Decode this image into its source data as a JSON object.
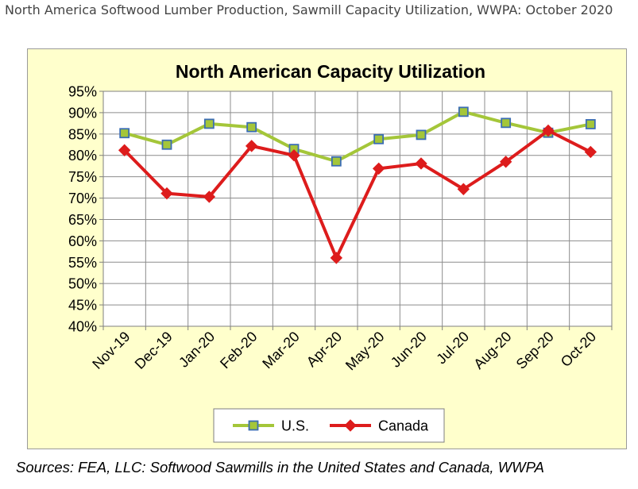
{
  "page": {
    "heading": "North America Softwood Lumber Production, Sawmill Capacity Utilization, WWPA: October 2020",
    "sources": "Sources: FEA, LLC: Softwood Sawmills in the United States and Canada, WWPA"
  },
  "chart_data": {
    "type": "line",
    "title": "North American Capacity Utilization",
    "xlabel": "",
    "ylabel": "",
    "categories": [
      "Nov-19",
      "Dec-19",
      "Jan-20",
      "Feb-20",
      "Mar-20",
      "Apr-20",
      "May-20",
      "Jun-20",
      "Jul-20",
      "Aug-20",
      "Sep-20",
      "Oct-20"
    ],
    "y_ticks": [
      "40%",
      "45%",
      "50%",
      "55%",
      "60%",
      "65%",
      "70%",
      "75%",
      "80%",
      "85%",
      "90%",
      "95%"
    ],
    "ylim": [
      40,
      95
    ],
    "grid": true,
    "legend_position": "bottom",
    "series": [
      {
        "name": "U.S.",
        "color": "#a4c639",
        "marker": "square",
        "marker_fill": "#a4c639",
        "marker_edge": "#3b6db3",
        "values": [
          85.2,
          82.5,
          87.4,
          86.6,
          81.5,
          78.6,
          83.8,
          84.8,
          90.2,
          87.6,
          85.3,
          87.3
        ]
      },
      {
        "name": "Canada",
        "color": "#dd1c1c",
        "marker": "diamond",
        "marker_fill": "#dd1c1c",
        "marker_edge": "#dd1c1c",
        "values": [
          81.2,
          71.1,
          70.3,
          82.2,
          80.0,
          56.0,
          76.9,
          78.1,
          72.1,
          78.5,
          85.8,
          80.8
        ]
      }
    ]
  }
}
